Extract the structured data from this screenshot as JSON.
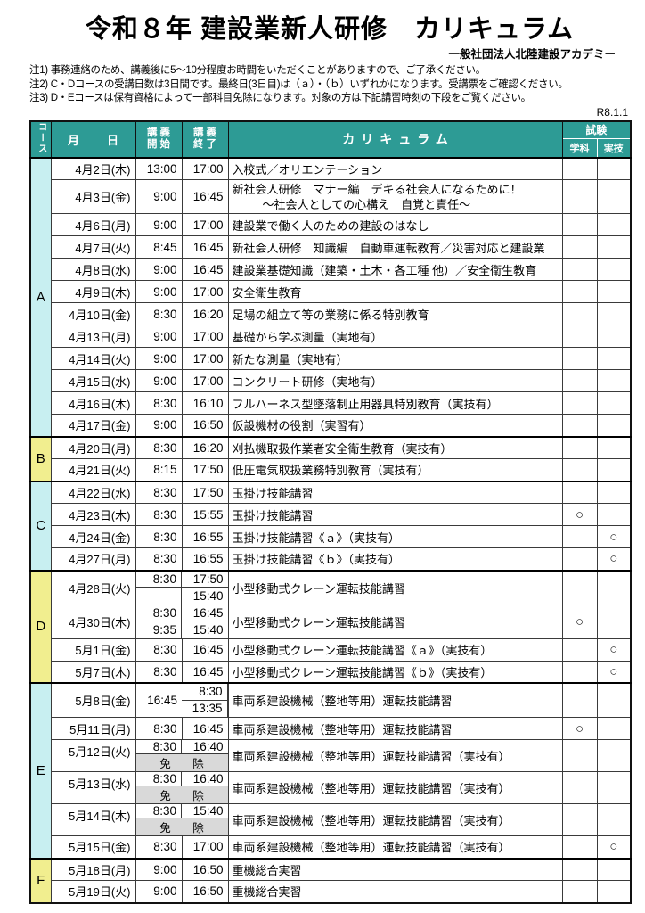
{
  "page": {
    "title": "令和８年 建設業新人研修　カリキュラム",
    "org": "一般社団法人北陸建設アカデミー",
    "notes": [
      "注1) 事務連絡のため、講義後に5～10分程度お時間をいただくことがありますので、ご了承ください。",
      "注2) C・Dコースの受講日数は3日間です。最終日(3日目)は（ａ）・（ｂ）いずれかになります。受講票をご確認ください。",
      "注3) D・Eコースは保有資格によって一部科目免除になります。対象の方は下記講習時刻の下段をご覧ください。"
    ],
    "revision": "R8.1.1"
  },
  "colors": {
    "header_teal": "#2D9B95",
    "course_cyan": "#C8EFF1",
    "course_yellow": "#F1EE8F",
    "exempt_gray": "#D9D9D9"
  },
  "table": {
    "header": {
      "course": "コース",
      "date": "月　日",
      "start_l1": "講義",
      "start_l2": "開始",
      "end_l1": "講義",
      "end_l2": "終了",
      "curriculum": "カリキュラム",
      "exam": "試験",
      "exam_written": "学科",
      "exam_practical": "実技"
    },
    "exempt_label": "免　除",
    "circle": "○",
    "groups": [
      {
        "course": "A",
        "color": "cyan",
        "rows": [
          {
            "date": "4月2日(木)",
            "start": "13:00",
            "end": "17:00",
            "curriculum": "入校式／オリエンテーション"
          },
          {
            "date": "4月3日(金)",
            "start": "9:00",
            "end": "16:45",
            "curriculum": "新社会人研修　マナー編　デキる社会人になるために！",
            "curriculum2": "～社会人としての心構え　自覚と責任～"
          },
          {
            "date": "4月6日(月)",
            "start": "9:00",
            "end": "17:00",
            "curriculum": "建設業で働く人のための建設のはなし"
          },
          {
            "date": "4月7日(火)",
            "start": "8:45",
            "end": "16:45",
            "curriculum": "新社会人研修　知識編　自動車運転教育／災害対応と建設業"
          },
          {
            "date": "4月8日(水)",
            "start": "9:00",
            "end": "16:45",
            "curriculum": "建設業基礎知識（建築・土木・各工種 他）／安全衛生教育"
          },
          {
            "date": "4月9日(木)",
            "start": "9:00",
            "end": "17:00",
            "curriculum": "安全衛生教育"
          },
          {
            "date": "4月10日(金)",
            "start": "8:30",
            "end": "16:20",
            "curriculum": "足場の組立て等の業務に係る特別教育"
          },
          {
            "date": "4月13日(月)",
            "start": "9:00",
            "end": "17:00",
            "curriculum": "基礎から学ぶ測量（実地有）"
          },
          {
            "date": "4月14日(火)",
            "start": "9:00",
            "end": "17:00",
            "curriculum": "新たな測量（実地有）"
          },
          {
            "date": "4月15日(水)",
            "start": "9:00",
            "end": "17:00",
            "curriculum": "コンクリート研修（実地有）"
          },
          {
            "date": "4月16日(木)",
            "start": "8:30",
            "end": "16:10",
            "curriculum": "フルハーネス型墜落制止用器具特別教育（実技有）"
          },
          {
            "date": "4月17日(金)",
            "start": "9:00",
            "end": "16:50",
            "curriculum": "仮設機材の役割（実習有）"
          }
        ]
      },
      {
        "course": "B",
        "color": "yellow",
        "rows": [
          {
            "date": "4月20日(月)",
            "start": "8:30",
            "end": "16:20",
            "curriculum": "刈払機取扱作業者安全衛生教育（実技有）"
          },
          {
            "date": "4月21日(火)",
            "start": "8:15",
            "end": "17:50",
            "curriculum": "低圧電気取扱業務特別教育（実技有）"
          }
        ]
      },
      {
        "course": "C",
        "color": "cyan",
        "rows": [
          {
            "date": "4月22日(水)",
            "start": "8:30",
            "end": "17:50",
            "curriculum": "玉掛け技能講習"
          },
          {
            "date": "4月23日(木)",
            "start": "8:30",
            "end": "15:55",
            "curriculum": "玉掛け技能講習",
            "exam_w": "○"
          },
          {
            "date": "4月24日(金)",
            "start": "8:30",
            "end": "16:55",
            "curriculum": "玉掛け技能講習《ａ》（実技有）",
            "exam_p": "○"
          },
          {
            "date": "4月27日(月)",
            "start": "8:30",
            "end": "16:55",
            "curriculum": "玉掛け技能講習《ｂ》（実技有）",
            "exam_p": "○"
          }
        ]
      },
      {
        "course": "D",
        "color": "yellow",
        "rows": [
          {
            "date": "4月28日(火)",
            "time_type": "split2",
            "start_top": "8:30",
            "start_bottom": "",
            "end_top": "17:50",
            "end_bottom": "15:40",
            "curriculum": "小型移動式クレーン運転技能講習"
          },
          {
            "date": "4月30日(木)",
            "time_type": "split2",
            "start_top": "8:30",
            "start_bottom": "9:35",
            "end_top": "16:45",
            "end_bottom": "15:40",
            "curriculum": "小型移動式クレーン運転技能講習",
            "exam_w": "○"
          },
          {
            "date": "5月1日(金)",
            "start": "8:30",
            "end": "16:45",
            "curriculum": "小型移動式クレーン運転技能講習《ａ》（実技有）",
            "exam_p": "○"
          },
          {
            "date": "5月7日(木)",
            "start": "8:30",
            "end": "16:45",
            "curriculum": "小型移動式クレーン運転技能講習《ｂ》（実技有）",
            "exam_p": "○"
          }
        ]
      },
      {
        "course": "E",
        "color": "cyan",
        "rows": [
          {
            "date": "5月8日(金)",
            "time_type": "split_start",
            "start_top": "8:30",
            "start_bottom": "13:35",
            "end": "16:45",
            "curriculum": "車両系建設機械（整地等用）運転技能講習"
          },
          {
            "date": "5月11日(月)",
            "start": "8:30",
            "end": "16:45",
            "curriculum": "車両系建設機械（整地等用）運転技能講習",
            "exam_w": "○"
          },
          {
            "date": "5月12日(火)",
            "time_type": "exempt",
            "start": "8:30",
            "end": "16:40",
            "curriculum": "車両系建設機械（整地等用）運転技能講習（実技有）"
          },
          {
            "date": "5月13日(水)",
            "time_type": "exempt",
            "start": "8:30",
            "end": "16:40",
            "curriculum": "車両系建設機械（整地等用）運転技能講習（実技有）"
          },
          {
            "date": "5月14日(木)",
            "time_type": "exempt",
            "start": "8:30",
            "end": "15:40",
            "curriculum": "車両系建設機械（整地等用）運転技能講習（実技有）"
          },
          {
            "date": "5月15日(金)",
            "start": "8:30",
            "end": "17:00",
            "curriculum": "車両系建設機械（整地等用）運転技能講習（実技有）",
            "exam_p": "○"
          }
        ]
      },
      {
        "course": "F",
        "color": "yellow",
        "rows": [
          {
            "date": "5月18日(月)",
            "start": "9:00",
            "end": "16:50",
            "curriculum": "重機総合実習"
          },
          {
            "date": "5月19日(火)",
            "start": "9:00",
            "end": "16:50",
            "curriculum": "重機総合実習"
          }
        ]
      }
    ]
  }
}
